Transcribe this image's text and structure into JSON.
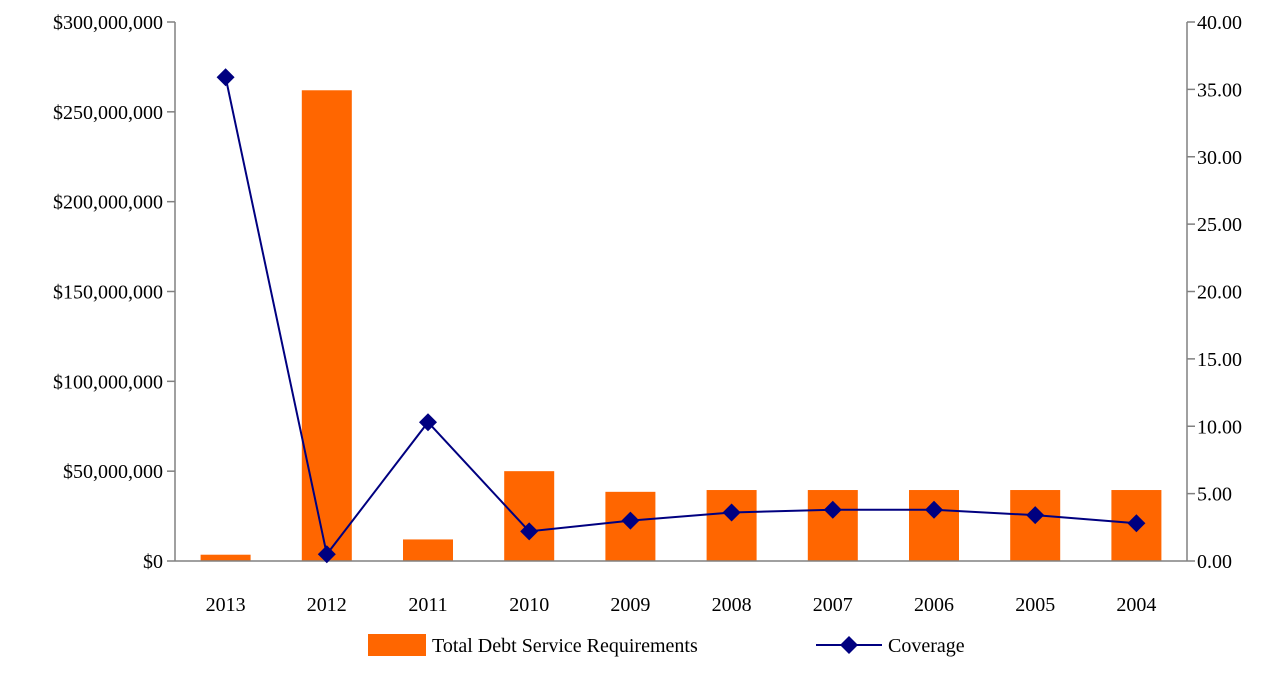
{
  "chart_data": {
    "type": "bar",
    "categories": [
      "2013",
      "2012",
      "2011",
      "2010",
      "2009",
      "2008",
      "2007",
      "2006",
      "2005",
      "2004"
    ],
    "series": [
      {
        "name": "Total Debt Service Requirements",
        "type": "bar",
        "axis": "left",
        "color": "#FF6600",
        "values": [
          3500000,
          262000000,
          12000000,
          50000000,
          38500000,
          39500000,
          39500000,
          39500000,
          39500000,
          39500000
        ]
      },
      {
        "name": "Coverage",
        "type": "line",
        "axis": "right",
        "color": "#000080",
        "marker": "diamond",
        "values": [
          35.9,
          0.5,
          10.3,
          2.2,
          3.0,
          3.6,
          3.8,
          3.8,
          3.4,
          2.8
        ]
      }
    ],
    "y_left": {
      "ylim": [
        0,
        300000000
      ],
      "ticks": [
        0,
        50000000,
        100000000,
        150000000,
        200000000,
        250000000,
        300000000
      ],
      "tick_labels": [
        "$0",
        "$50,000,000",
        "$100,000,000",
        "$150,000,000",
        "$200,000,000",
        "$250,000,000",
        "$300,000,000"
      ]
    },
    "y_right": {
      "ylim": [
        0,
        40
      ],
      "ticks": [
        0,
        5,
        10,
        15,
        20,
        25,
        30,
        35,
        40
      ],
      "tick_labels": [
        "0.00",
        "5.00",
        "10.00",
        "15.00",
        "20.00",
        "25.00",
        "30.00",
        "35.00",
        "40.00"
      ]
    },
    "title": "",
    "xlabel": "",
    "ylabel": "",
    "grid": false,
    "legend": "bottom-center"
  }
}
